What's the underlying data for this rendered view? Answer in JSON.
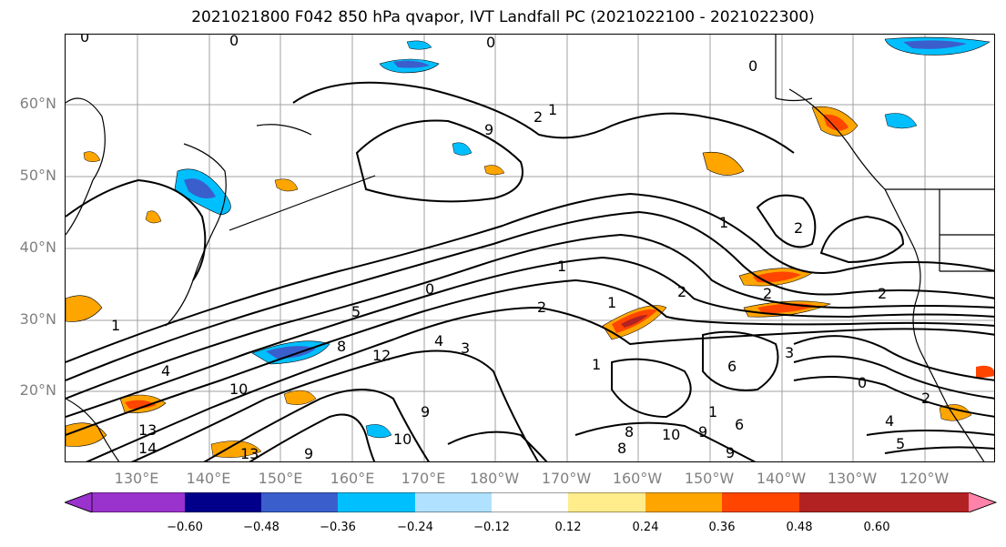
{
  "title": "2021021800 F042 850 hPa qvapor, IVT Landfall PC (2021022100 - 2021022300)",
  "map": {
    "lat_labels": [
      "60°N",
      "50°N",
      "40°N",
      "30°N",
      "20°N"
    ],
    "lon_labels": [
      "130°E",
      "140°E",
      "150°E",
      "160°E",
      "170°E",
      "180°W",
      "170°W",
      "160°W",
      "150°W",
      "140°W",
      "130°W",
      "120°W"
    ],
    "contour_labels": [
      "0",
      "0",
      "0",
      "0",
      "1",
      "2",
      "2",
      "2",
      "2",
      "1",
      "1",
      "1",
      "2",
      "2",
      "0",
      "1",
      "5",
      "8",
      "12",
      "4",
      "4",
      "10",
      "13",
      "14",
      "13",
      "9",
      "10",
      "9",
      "10",
      "9",
      "8",
      "1",
      "8",
      "3",
      "6",
      "1",
      "6",
      "9",
      "3",
      "4",
      "2",
      "0",
      "5",
      "9"
    ]
  },
  "colorbar": {
    "colors": [
      "#9a32cd",
      "#00008b",
      "#3a5fcd",
      "#00bfff",
      "#b0e2ff",
      "#ffffff",
      "#ffec8b",
      "#ffa500",
      "#ff4500",
      "#b22222",
      "#ff82ab"
    ],
    "tick_labels": [
      "−0.60",
      "−0.48",
      "−0.36",
      "−0.24",
      "−0.12",
      "0.12",
      "0.24",
      "0.36",
      "0.48",
      "0.60"
    ]
  },
  "colors": {
    "grid": "#a0a0a0",
    "land": "#000000",
    "contour": "#000000",
    "axis_text": "#808080"
  }
}
